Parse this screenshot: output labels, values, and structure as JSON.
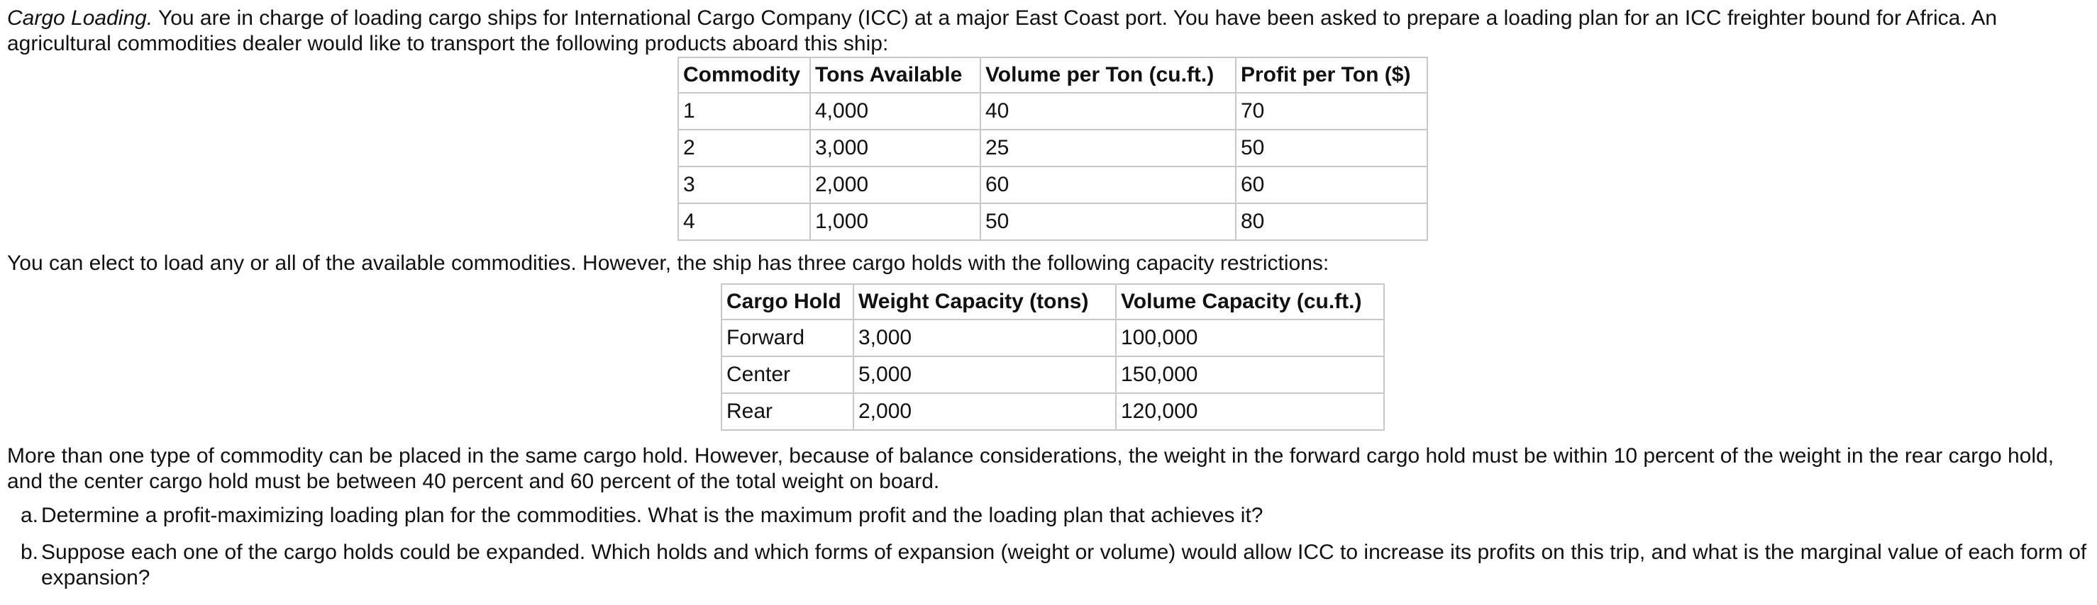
{
  "intro": {
    "title": "Cargo Loading.",
    "text": " You are in charge of loading cargo ships for International Cargo Company (ICC) at a major East Coast port. You have been asked to prepare a loading plan for an ICC freighter bound for Africa. An agricultural commodities dealer would like to transport the following products aboard this ship:"
  },
  "commodities_table": {
    "headers": [
      "Commodity",
      "Tons Available",
      "Volume per Ton (cu.ft.)",
      "Profit per Ton ($)"
    ],
    "rows": [
      [
        "1",
        "4,000",
        "40",
        "70"
      ],
      [
        "2",
        "3,000",
        "25",
        "50"
      ],
      [
        "3",
        "2,000",
        "60",
        "60"
      ],
      [
        "4",
        "1,000",
        "50",
        "80"
      ]
    ]
  },
  "paragraph2": "You can elect to load any or all of the available commodities. However, the ship has three cargo holds with the following capacity restrictions:",
  "holds_table": {
    "headers": [
      "Cargo Hold",
      "Weight Capacity (tons)",
      "Volume Capacity (cu.ft.)"
    ],
    "rows": [
      [
        "Forward",
        "3,000",
        "100,000"
      ],
      [
        "Center",
        "5,000",
        "150,000"
      ],
      [
        "Rear",
        "2,000",
        "120,000"
      ]
    ]
  },
  "paragraph3": "More than one type of commodity can be placed in the same cargo hold. However, because of balance considerations, the weight in the forward cargo hold must be within 10 percent of the weight in the rear cargo hold, and the center cargo hold must be between 40 percent and 60 percent of the total weight on board.",
  "questions": [
    {
      "marker": "a.",
      "text": "Determine a profit-maximizing loading plan for the commodities. What is the maximum profit and the loading plan that achieves it?"
    },
    {
      "marker": "b.",
      "text": "Suppose each one of the cargo holds could be expanded. Which holds and which forms of expansion (weight or volume) would allow ICC to increase its profits on this trip, and what is the marginal value of each form of expansion?"
    }
  ]
}
